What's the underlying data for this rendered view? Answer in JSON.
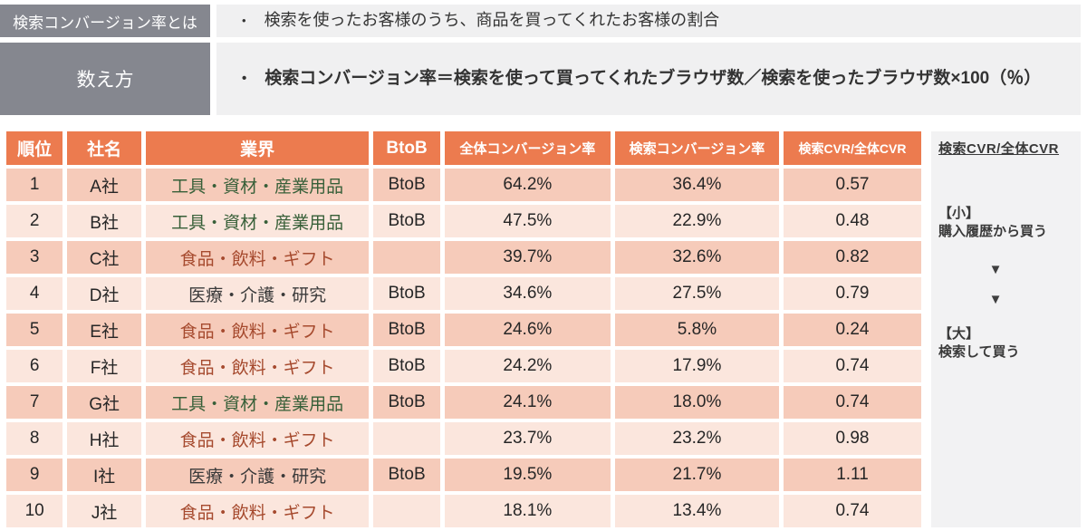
{
  "definitions": [
    {
      "label": "検索コンバージョン率とは",
      "bullet": "•",
      "text": "検索を使ったお客様のうち、商品を買ってくれたお客様の割合"
    },
    {
      "label": "数え方",
      "bullet": "•",
      "text": "検索コンバージョン率＝検索を使って買ってくれたブラウザ数／検索を使ったブラウザ数×100（％）"
    }
  ],
  "table": {
    "headers": [
      "順位",
      "社名",
      "業界",
      "BtoB",
      "全体コンバージョン率",
      "検索コンバージョン率",
      "検索CVR/全体CVR"
    ],
    "rows": [
      {
        "rank": "1",
        "company": "A社",
        "industry": "工具・資材・産業用品",
        "industry_color": "#375F38",
        "btob": "BtoB",
        "overall_cvr": "64.2%",
        "search_cvr": "36.4%",
        "ratio": "0.57"
      },
      {
        "rank": "2",
        "company": "B社",
        "industry": "工具・資材・産業用品",
        "industry_color": "#375F38",
        "btob": "BtoB",
        "overall_cvr": "47.5%",
        "search_cvr": "22.9%",
        "ratio": "0.48"
      },
      {
        "rank": "3",
        "company": "C社",
        "industry": "食品・飲料・ギフト",
        "industry_color": "#A64A2E",
        "btob": "",
        "overall_cvr": "39.7%",
        "search_cvr": "32.6%",
        "ratio": "0.82"
      },
      {
        "rank": "4",
        "company": "D社",
        "industry": "医療・介護・研究",
        "industry_color": "#3A3A3A",
        "btob": "BtoB",
        "overall_cvr": "34.6%",
        "search_cvr": "27.5%",
        "ratio": "0.79"
      },
      {
        "rank": "5",
        "company": "E社",
        "industry": "食品・飲料・ギフト",
        "industry_color": "#A64A2E",
        "btob": "BtoB",
        "overall_cvr": "24.6%",
        "search_cvr": "5.8%",
        "ratio": "0.24"
      },
      {
        "rank": "6",
        "company": "F社",
        "industry": "食品・飲料・ギフト",
        "industry_color": "#A64A2E",
        "btob": "BtoB",
        "overall_cvr": "24.2%",
        "search_cvr": "17.9%",
        "ratio": "0.74"
      },
      {
        "rank": "7",
        "company": "G社",
        "industry": "工具・資材・産業用品",
        "industry_color": "#375F38",
        "btob": "BtoB",
        "overall_cvr": "24.1%",
        "search_cvr": "18.0%",
        "ratio": "0.74"
      },
      {
        "rank": "8",
        "company": "H社",
        "industry": "食品・飲料・ギフト",
        "industry_color": "#A64A2E",
        "btob": "",
        "overall_cvr": "23.7%",
        "search_cvr": "23.2%",
        "ratio": "0.98"
      },
      {
        "rank": "9",
        "company": "I社",
        "industry": "医療・介護・研究",
        "industry_color": "#3A3A3A",
        "btob": "BtoB",
        "overall_cvr": "19.5%",
        "search_cvr": "21.7%",
        "ratio": "1.11"
      },
      {
        "rank": "10",
        "company": "J社",
        "industry": "食品・飲料・ギフト",
        "industry_color": "#A64A2E",
        "btob": "",
        "overall_cvr": "18.1%",
        "search_cvr": "13.4%",
        "ratio": "0.74"
      }
    ]
  },
  "sidebar": {
    "title": "検索CVR/全体CVR",
    "small_label": "【小】",
    "small_desc": "購入履歴から買う",
    "arrow": "▼",
    "large_label": "【大】",
    "large_desc": "検索して買う"
  },
  "colors": {
    "header_orange": "#EC7B4F",
    "row_odd": "#F6CBBA",
    "row_even": "#FBE6DD",
    "label_gray": "#85878F",
    "content_gray": "#F0F0F1",
    "sidebar_gray": "#F2F2F3",
    "industry_green": "#375F38",
    "industry_brick": "#A64A2E",
    "industry_dark": "#3A3A3A"
  }
}
